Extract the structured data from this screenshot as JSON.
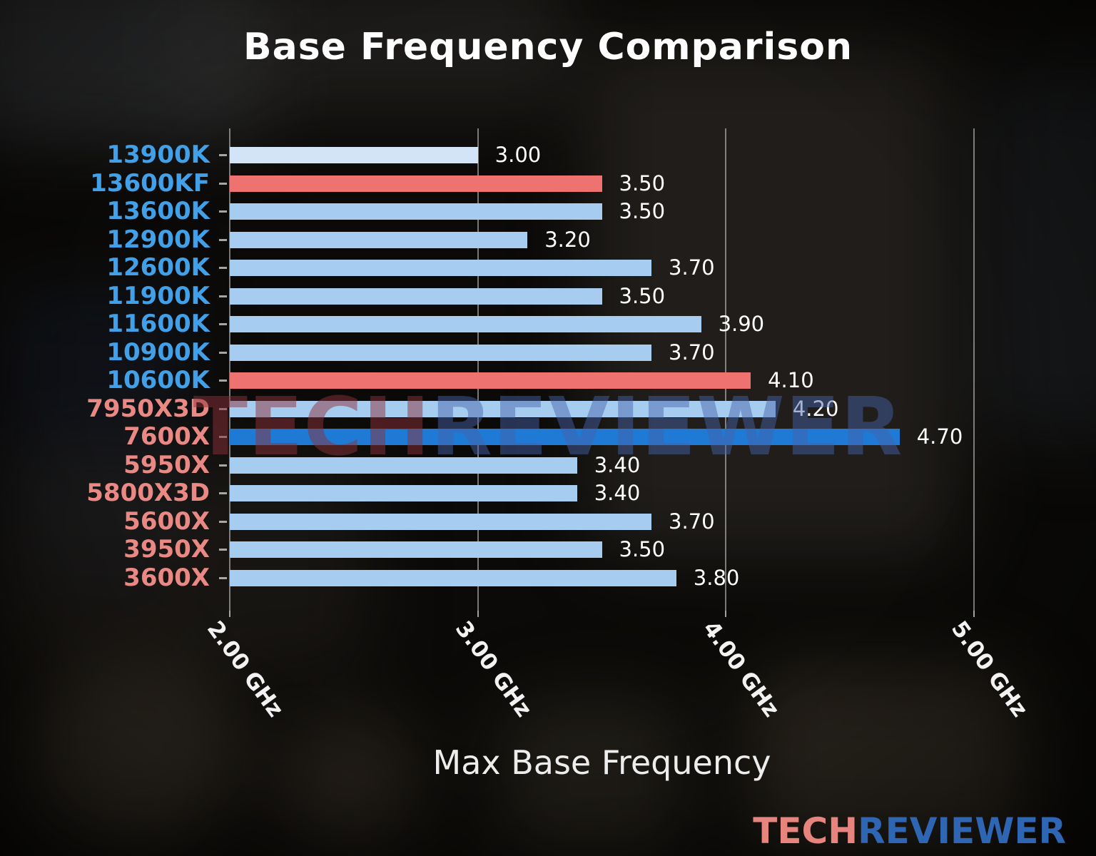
{
  "chart_data": {
    "type": "bar",
    "orientation": "horizontal",
    "title": "Base Frequency Comparison",
    "xlabel": "Max Base Frequency",
    "unit": "GHz",
    "xlim": [
      2.0,
      5.35
    ],
    "grid": true,
    "xticks": [
      {
        "value": 2.0,
        "label": "2.00 GHz"
      },
      {
        "value": 3.0,
        "label": "3.00 GHz"
      },
      {
        "value": 4.0,
        "label": "4.00 GHz"
      },
      {
        "value": 5.0,
        "label": "5.00 GHz"
      }
    ],
    "bars": [
      {
        "category": "13900K",
        "value": 3.0,
        "value_label": "3.00",
        "bar_color": "#d2e4f6",
        "label_color": "#41a0e8"
      },
      {
        "category": "13600KF",
        "value": 3.5,
        "value_label": "3.50",
        "bar_color": "#ee7370",
        "label_color": "#41a0e8"
      },
      {
        "category": "13600K",
        "value": 3.5,
        "value_label": "3.50",
        "bar_color": "#a6cdf0",
        "label_color": "#41a0e8"
      },
      {
        "category": "12900K",
        "value": 3.2,
        "value_label": "3.20",
        "bar_color": "#a6cdf0",
        "label_color": "#41a0e8"
      },
      {
        "category": "12600K",
        "value": 3.7,
        "value_label": "3.70",
        "bar_color": "#a6cdf0",
        "label_color": "#41a0e8"
      },
      {
        "category": "11900K",
        "value": 3.5,
        "value_label": "3.50",
        "bar_color": "#a6cdf0",
        "label_color": "#41a0e8"
      },
      {
        "category": "11600K",
        "value": 3.9,
        "value_label": "3.90",
        "bar_color": "#a6cdf0",
        "label_color": "#41a0e8"
      },
      {
        "category": "10900K",
        "value": 3.7,
        "value_label": "3.70",
        "bar_color": "#a6cdf0",
        "label_color": "#41a0e8"
      },
      {
        "category": "10600K",
        "value": 4.1,
        "value_label": "4.10",
        "bar_color": "#ee7370",
        "label_color": "#41a0e8"
      },
      {
        "category": "7950X3D",
        "value": 4.2,
        "value_label": "4.20",
        "bar_color": "#a6cdf0",
        "label_color": "#ea8984"
      },
      {
        "category": "7600X",
        "value": 4.7,
        "value_label": "4.70",
        "bar_color": "#1e7ad4",
        "label_color": "#ea8984"
      },
      {
        "category": "5950X",
        "value": 3.4,
        "value_label": "3.40",
        "bar_color": "#a6cdf0",
        "label_color": "#ea8984"
      },
      {
        "category": "5800X3D",
        "value": 3.4,
        "value_label": "3.40",
        "bar_color": "#a6cdf0",
        "label_color": "#ea8984"
      },
      {
        "category": "5600X",
        "value": 3.7,
        "value_label": "3.70",
        "bar_color": "#a6cdf0",
        "label_color": "#ea8984"
      },
      {
        "category": "3950X",
        "value": 3.5,
        "value_label": "3.50",
        "bar_color": "#a6cdf0",
        "label_color": "#ea8984"
      },
      {
        "category": "3600X",
        "value": 3.8,
        "value_label": "3.80",
        "bar_color": "#a6cdf0",
        "label_color": "#ea8984"
      }
    ],
    "legend": null,
    "colors": {
      "bar_default": "#a6cdf0",
      "bar_first": "#d2e4f6",
      "bar_highlight_red": "#ee7370",
      "bar_highlight_blue": "#1e7ad4",
      "intel_label": "#41a0e8",
      "amd_label": "#ea8984",
      "value_label": "#ffffff",
      "gridline": "#d4d4d4"
    }
  },
  "watermark": {
    "tech": "TECH",
    "reviewer": "REVIEWER"
  },
  "logo": {
    "tech": "TECH",
    "reviewer": "REVIEWER"
  }
}
